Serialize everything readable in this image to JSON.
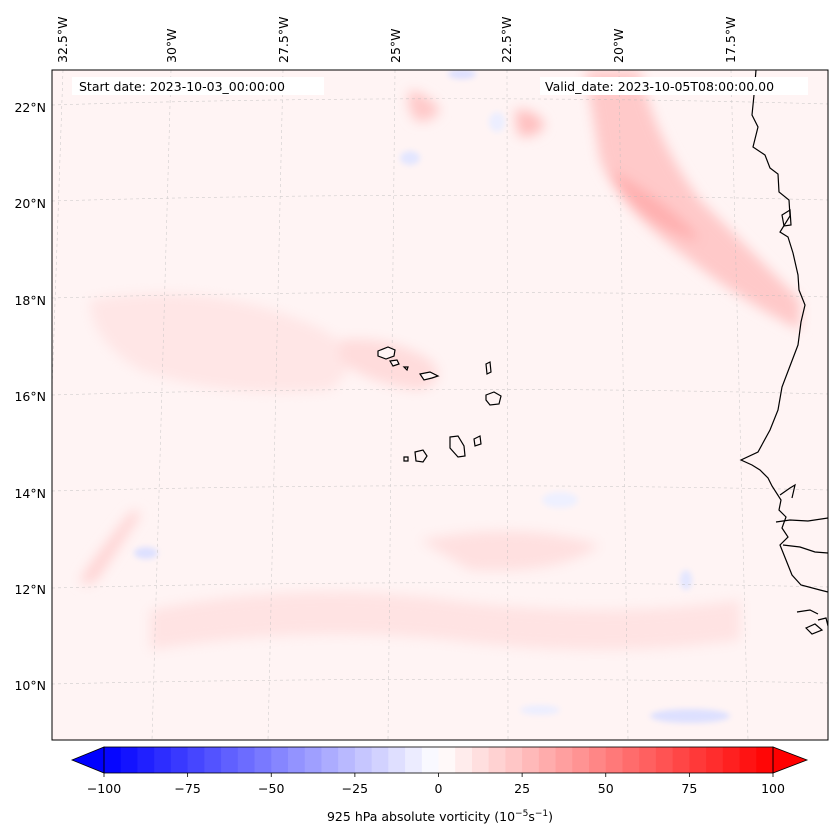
{
  "map": {
    "start_date": "Start date: 2023-10-03_00:00:00",
    "valid_date": "Valid_date: 2023-10-05T08:00:00.00",
    "lon_labels": [
      "32.5°W",
      "30°W",
      "27.5°W",
      "25°W",
      "22.5°W",
      "20°W",
      "17.5°W"
    ],
    "lat_labels": [
      "22°N",
      "20°N",
      "18°N",
      "16°N",
      "14°N",
      "12°N",
      "10°N"
    ],
    "features": [
      "cape-verde-islands",
      "west-african-coastline",
      "positive-vorticity-band-northeast",
      "weak-negative-vorticity-patches"
    ],
    "colors": {
      "ocean_background": "#fff4f4",
      "positive_weak": "#ffe3e3",
      "positive_moderate": "#ffc9c9",
      "positive_strong": "#ffb0b0",
      "negative_weak": "#eceeff",
      "negative_moderate": "#dde0ff",
      "coastline": "#000000"
    }
  },
  "colorbar": {
    "label": "925 hPa absolute vorticity (10",
    "label_exp1": "−5",
    "label_mid": "s",
    "label_exp2": "−1",
    "label_end": ")",
    "ticks": [
      "−100",
      "−75",
      "−50",
      "−25",
      "0",
      "25",
      "50",
      "75",
      "100"
    ],
    "tick_values": [
      -100,
      -75,
      -50,
      -25,
      0,
      25,
      50,
      75,
      100
    ],
    "min": -100,
    "max": 100,
    "levels": 41,
    "colormap": "bwr",
    "min_color": "#0000ff",
    "mid_color": "#ffffff",
    "max_color": "#ff0000"
  }
}
